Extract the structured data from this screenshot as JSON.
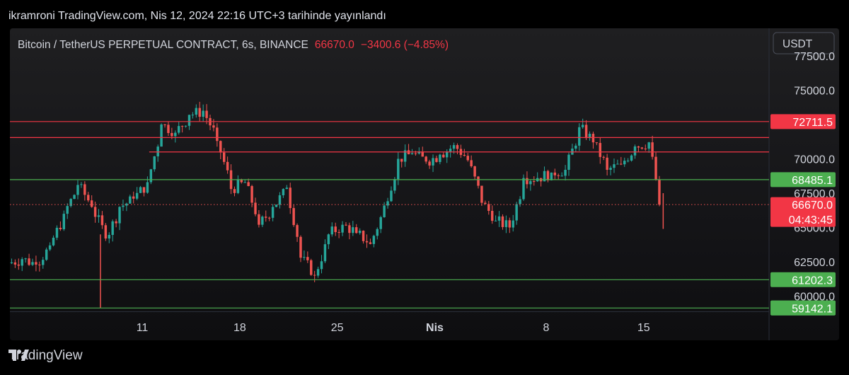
{
  "header": {
    "text": "ikramroni TradingView.com, Nis 12, 2024 22:16 UTC+3 tarihinde yayınlandı"
  },
  "legend": {
    "symbol": "Bitcoin / TetherUS PERPETUAL CONTRACT, 6s, BINANCE",
    "price": "66670.0",
    "change": "−3400.6 (−4.85%)"
  },
  "currency_button": "USDT",
  "footer": {
    "brand": "TradingView",
    "logo_icon": "tradingview-logo-icon"
  },
  "colors": {
    "up": "#26a69a",
    "down": "#ef5350",
    "red_line": "#f23645",
    "green_line": "#4caf50"
  },
  "chart_data": {
    "type": "candlestick",
    "y_range": [
      58900,
      79500
    ],
    "y_ticks": [
      "77500.0",
      "75000.0",
      "70000.0",
      "67500.0",
      "65000.0",
      "62500.0"
    ],
    "x_ticks": [
      {
        "label": "11",
        "day": 9
      },
      {
        "label": "18",
        "day": 16
      },
      {
        "label": "25",
        "day": 23
      },
      {
        "label": "Nis",
        "day": 30
      },
      {
        "label": "8",
        "day": 38
      },
      {
        "label": "15",
        "day": 45
      }
    ],
    "x_range_days": [
      -0.5,
      54
    ],
    "horizontal_lines": [
      {
        "price": 72711.5,
        "color": "red",
        "label": "72711.5",
        "start_day": -0.5
      },
      {
        "price": 71550,
        "color": "red",
        "label": "",
        "start_day": -0.5
      },
      {
        "price": 70500,
        "color": "red",
        "label": "",
        "start_day": 9.5
      },
      {
        "price": 68485.1,
        "color": "green",
        "label": "68485.1",
        "start_day": -0.5
      },
      {
        "price": 61202.3,
        "color": "green",
        "label": "61202.3",
        "start_day": -0.5
      },
      {
        "price": 59142.1,
        "color": "green",
        "label": "59142.1",
        "start_day": -0.5
      }
    ],
    "last_price": {
      "price": 66670.0,
      "label": "66670.0",
      "countdown": "04:43:45"
    },
    "hidden_tick_label": "60000.0",
    "daily_closes": [
      62700,
      62300,
      63700,
      66000,
      68100,
      66500,
      64200,
      66500,
      67100,
      68300,
      72500,
      71900,
      73200,
      73500,
      71300,
      67800,
      68300,
      65200,
      66500,
      67900,
      62800,
      61500,
      64500,
      65200,
      64600,
      63800,
      66600,
      70000,
      70400,
      69800,
      70300,
      71000,
      69900,
      66800,
      65500,
      65000,
      68600,
      68600,
      69000,
      69200,
      72300,
      71200,
      69200,
      69600,
      70900,
      71200,
      66670
    ]
  }
}
